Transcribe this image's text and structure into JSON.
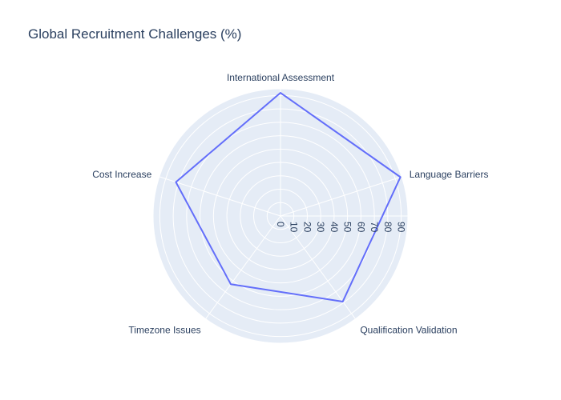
{
  "chart_data": {
    "type": "radar",
    "title": "Global Recruitment Challenges (%)",
    "categories": [
      "International Assessment",
      "Language Barriers",
      "Qualification Validation",
      "Timezone Issues",
      "Cost Increase"
    ],
    "series": [
      {
        "values": [
          92,
          94,
          79,
          63,
          82
        ]
      }
    ],
    "radial_range": [
      0,
      95
    ],
    "radial_ticks": [
      "0",
      "10",
      "20",
      "30",
      "40",
      "50",
      "60",
      "70",
      "80",
      "90"
    ],
    "grid": true,
    "colors": {
      "background": "#e5ecf6",
      "grid": "#ffffff",
      "line": "#636efa",
      "text": "#2a3f5f"
    }
  }
}
